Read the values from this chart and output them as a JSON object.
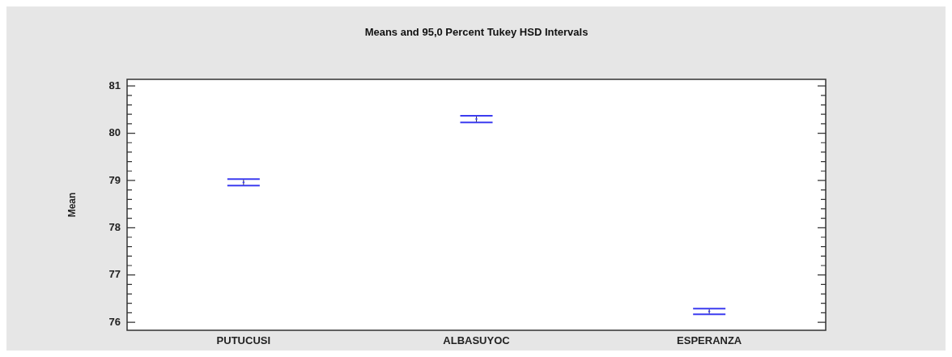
{
  "chart_data": {
    "type": "scatter",
    "title": "Means and 95,0 Percent Tukey HSD Intervals",
    "ylabel": "Mean",
    "categories": [
      "PUTUCUSI",
      "ALBASUYOC",
      "ESPERANZA"
    ],
    "series": [
      {
        "color": "#3c3cf0",
        "values": [
          78.96,
          80.3,
          76.23
        ],
        "errors": [
          [
            78.89,
            79.03
          ],
          [
            80.23,
            80.37
          ],
          [
            76.17,
            76.29
          ]
        ]
      }
    ],
    "ylim": [
      75.83,
      81.14
    ],
    "yticks": [
      76,
      {
        "value": 76.2,
        "label": null
      },
      {
        "value": 76.4,
        "label": null
      },
      {
        "value": 76.6,
        "label": null
      },
      {
        "value": 76.8,
        "label": null
      },
      77,
      {
        "value": 77.2,
        "label": null
      },
      {
        "value": 77.4,
        "label": null
      },
      {
        "value": 77.6,
        "label": null
      },
      {
        "value": 77.8,
        "label": null
      },
      78,
      {
        "value": 78.2,
        "label": null
      },
      {
        "value": 78.4,
        "label": null
      },
      {
        "value": 78.6,
        "label": null
      },
      {
        "value": 78.8,
        "label": null
      },
      79,
      {
        "value": 79.2,
        "label": null
      },
      {
        "value": 79.4,
        "label": null
      },
      {
        "value": 79.6,
        "label": null
      },
      {
        "value": 79.8,
        "label": null
      },
      80,
      {
        "value": 80.2,
        "label": null
      },
      {
        "value": 80.4,
        "label": null
      },
      {
        "value": 80.6,
        "label": null
      },
      {
        "value": 80.8,
        "label": null
      },
      81
    ],
    "grid": false,
    "legend": false,
    "marker": "circle"
  }
}
